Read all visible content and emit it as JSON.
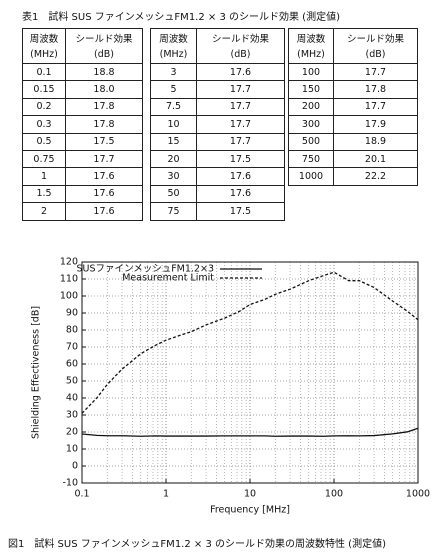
{
  "table": {
    "caption": "表1　試料 SUS ファインメッシュFM1.2 × 3 のシールド効果 (測定値)",
    "headers": [
      [
        "周波数",
        "(MHz)"
      ],
      [
        "シールド効果",
        "(dB)"
      ]
    ],
    "groups": [
      [
        [
          "0.1",
          "18.8"
        ],
        [
          "0.15",
          "18.0"
        ],
        [
          "0.2",
          "17.8"
        ],
        [
          "0.3",
          "17.8"
        ],
        [
          "0.5",
          "17.5"
        ],
        [
          "0.75",
          "17.7"
        ],
        [
          "1",
          "17.6"
        ],
        [
          "1.5",
          "17.6"
        ],
        [
          "2",
          "17.6"
        ]
      ],
      [
        [
          "3",
          "17.6"
        ],
        [
          "5",
          "17.7"
        ],
        [
          "7.5",
          "17.7"
        ],
        [
          "10",
          "17.7"
        ],
        [
          "15",
          "17.7"
        ],
        [
          "20",
          "17.5"
        ],
        [
          "30",
          "17.6"
        ],
        [
          "50",
          "17.6"
        ],
        [
          "75",
          "17.5"
        ]
      ],
      [
        [
          "100",
          "17.7"
        ],
        [
          "150",
          "17.8"
        ],
        [
          "200",
          "17.7"
        ],
        [
          "300",
          "17.9"
        ],
        [
          "500",
          "18.9"
        ],
        [
          "750",
          "20.1"
        ],
        [
          "1000",
          "22.2"
        ]
      ]
    ]
  },
  "chart_data": {
    "type": "line",
    "xscale": "log",
    "x": [
      0.1,
      0.15,
      0.2,
      0.3,
      0.5,
      0.75,
      1,
      1.5,
      2,
      3,
      5,
      7.5,
      10,
      15,
      20,
      30,
      50,
      75,
      100,
      150,
      200,
      300,
      500,
      750,
      1000
    ],
    "series": [
      {
        "name": "SUSファインメッシュFM1.2×3",
        "color": "#111111",
        "dash": "none",
        "values": [
          18.8,
          18.0,
          17.8,
          17.8,
          17.5,
          17.7,
          17.6,
          17.6,
          17.6,
          17.6,
          17.7,
          17.7,
          17.7,
          17.7,
          17.5,
          17.6,
          17.6,
          17.5,
          17.7,
          17.8,
          17.7,
          17.9,
          18.9,
          20.1,
          22.2
        ]
      },
      {
        "name": "Measurement Limit",
        "color": "#111111",
        "dash": "3 2",
        "values": [
          31,
          40,
          48,
          57,
          66,
          71,
          74,
          77,
          79,
          83,
          87,
          91,
          95,
          98,
          101,
          104,
          109,
          112,
          114,
          109,
          109,
          105,
          97,
          91,
          86
        ]
      }
    ],
    "xlim": [
      0.1,
      1000
    ],
    "xticks": [
      0.1,
      1,
      10,
      100,
      1000
    ],
    "ylim": [
      -10,
      120
    ],
    "yticks": [
      -10,
      0,
      10,
      20,
      30,
      40,
      50,
      60,
      70,
      80,
      90,
      100,
      110,
      120
    ],
    "xlabel": "Frequency [MHz]",
    "ylabel": "Shielding Effectiveness [dB]",
    "grid": true,
    "minor_grid": true,
    "legend": "upper left",
    "caption": "図1　試料 SUS ファインメッシュFM1.2 × 3 のシールド効果の周波数特性 (測定値)"
  }
}
